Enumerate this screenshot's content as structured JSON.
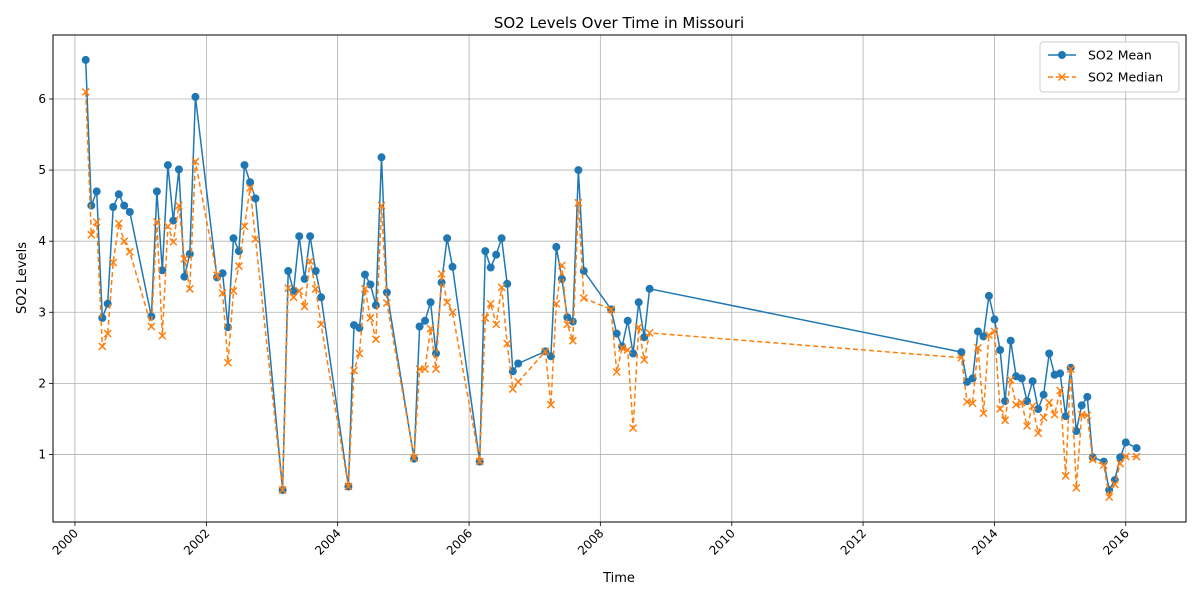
{
  "chart_data": {
    "type": "line",
    "title": "SO2 Levels Over Time in Missouri",
    "xlabel": "Time",
    "ylabel": "SO2 Levels",
    "x_is_date": true,
    "xlim": [
      "1999-09-01",
      "2016-12-01"
    ],
    "ylim": [
      0.05,
      6.9
    ],
    "x_ticks": [
      "2000",
      "2002",
      "2004",
      "2006",
      "2008",
      "2010",
      "2012",
      "2014",
      "2016"
    ],
    "y_ticks": [
      1,
      2,
      3,
      4,
      5,
      6
    ],
    "grid": true,
    "legend_position": "top-right",
    "colors": {
      "mean": "#1f77b4",
      "median": "#ff7f0e"
    },
    "series": [
      {
        "name": "SO2 Mean",
        "style": "solid",
        "marker": "circle",
        "points": [
          [
            "2000-03-01",
            6.55
          ],
          [
            "2000-04-01",
            4.5
          ],
          [
            "2000-05-01",
            4.7
          ],
          [
            "2000-06-01",
            2.92
          ],
          [
            "2000-07-01",
            3.12
          ],
          [
            "2000-08-01",
            4.48
          ],
          [
            "2000-09-01",
            4.66
          ],
          [
            "2000-10-01",
            4.5
          ],
          [
            "2000-11-01",
            4.41
          ],
          [
            "2001-03-01",
            2.94
          ],
          [
            "2001-04-01",
            4.7
          ],
          [
            "2001-05-01",
            3.59
          ],
          [
            "2001-06-01",
            5.07
          ],
          [
            "2001-07-01",
            4.29
          ],
          [
            "2001-08-01",
            5.01
          ],
          [
            "2001-09-01",
            3.5
          ],
          [
            "2001-10-01",
            3.82
          ],
          [
            "2001-11-01",
            6.03
          ],
          [
            "2002-03-01",
            3.49
          ],
          [
            "2002-04-01",
            3.55
          ],
          [
            "2002-05-01",
            2.79
          ],
          [
            "2002-06-01",
            4.04
          ],
          [
            "2002-07-01",
            3.86
          ],
          [
            "2002-08-01",
            5.07
          ],
          [
            "2002-09-01",
            4.83
          ],
          [
            "2002-10-01",
            4.6
          ],
          [
            "2003-03-01",
            0.5
          ],
          [
            "2003-04-01",
            3.58
          ],
          [
            "2003-05-01",
            3.3
          ],
          [
            "2003-06-01",
            4.07
          ],
          [
            "2003-07-01",
            3.47
          ],
          [
            "2003-08-01",
            4.07
          ],
          [
            "2003-09-01",
            3.58
          ],
          [
            "2003-10-01",
            3.21
          ],
          [
            "2004-03-01",
            0.55
          ],
          [
            "2004-04-01",
            2.82
          ],
          [
            "2004-05-01",
            2.78
          ],
          [
            "2004-06-01",
            3.53
          ],
          [
            "2004-07-01",
            3.39
          ],
          [
            "2004-08-01",
            3.1
          ],
          [
            "2004-09-01",
            5.18
          ],
          [
            "2004-10-01",
            3.28
          ],
          [
            "2005-03-01",
            0.94
          ],
          [
            "2005-04-01",
            2.8
          ],
          [
            "2005-05-01",
            2.88
          ],
          [
            "2005-06-01",
            3.14
          ],
          [
            "2005-07-01",
            2.42
          ],
          [
            "2005-08-01",
            3.42
          ],
          [
            "2005-09-01",
            4.04
          ],
          [
            "2005-10-01",
            3.64
          ],
          [
            "2006-03-01",
            0.9
          ],
          [
            "2006-04-01",
            3.86
          ],
          [
            "2006-05-01",
            3.63
          ],
          [
            "2006-06-01",
            3.81
          ],
          [
            "2006-07-01",
            4.04
          ],
          [
            "2006-08-01",
            3.4
          ],
          [
            "2006-09-01",
            2.17
          ],
          [
            "2006-10-01",
            2.28
          ],
          [
            "2007-03-01",
            2.45
          ],
          [
            "2007-04-01",
            2.38
          ],
          [
            "2007-05-01",
            3.92
          ],
          [
            "2007-06-01",
            3.47
          ],
          [
            "2007-07-01",
            2.93
          ],
          [
            "2007-08-01",
            2.87
          ],
          [
            "2007-09-01",
            5.0
          ],
          [
            "2007-10-01",
            3.58
          ],
          [
            "2008-03-01",
            3.04
          ],
          [
            "2008-04-01",
            2.7
          ],
          [
            "2008-05-01",
            2.52
          ],
          [
            "2008-06-01",
            2.88
          ],
          [
            "2008-07-01",
            2.42
          ],
          [
            "2008-08-01",
            3.14
          ],
          [
            "2008-09-01",
            2.65
          ],
          [
            "2008-10-01",
            3.33
          ],
          [
            "2013-07-01",
            2.44
          ],
          [
            "2013-08-01",
            2.02
          ],
          [
            "2013-09-01",
            2.07
          ],
          [
            "2013-10-01",
            2.73
          ],
          [
            "2013-11-01",
            2.66
          ],
          [
            "2013-12-01",
            3.23
          ],
          [
            "2014-01-01",
            2.9
          ],
          [
            "2014-02-01",
            2.47
          ],
          [
            "2014-03-01",
            1.75
          ],
          [
            "2014-04-01",
            2.6
          ],
          [
            "2014-05-01",
            2.1
          ],
          [
            "2014-06-01",
            2.07
          ],
          [
            "2014-07-01",
            1.75
          ],
          [
            "2014-08-01",
            2.03
          ],
          [
            "2014-09-01",
            1.64
          ],
          [
            "2014-10-01",
            1.84
          ],
          [
            "2014-11-01",
            2.42
          ],
          [
            "2014-12-01",
            2.12
          ],
          [
            "2015-01-01",
            2.14
          ],
          [
            "2015-02-01",
            1.54
          ],
          [
            "2015-03-01",
            2.22
          ],
          [
            "2015-04-01",
            1.33
          ],
          [
            "2015-05-01",
            1.69
          ],
          [
            "2015-06-01",
            1.81
          ],
          [
            "2015-07-01",
            0.96
          ],
          [
            "2015-09-01",
            0.9
          ],
          [
            "2015-10-01",
            0.5
          ],
          [
            "2015-11-01",
            0.64
          ],
          [
            "2015-12-01",
            0.96
          ],
          [
            "2016-01-01",
            1.17
          ],
          [
            "2016-03-01",
            1.09
          ]
        ]
      },
      {
        "name": "SO2 Median",
        "style": "dashed",
        "marker": "x",
        "points": [
          [
            "2000-03-01",
            6.1
          ],
          [
            "2000-04-01",
            4.09
          ],
          [
            "2000-05-01",
            4.27
          ],
          [
            "2000-06-01",
            2.52
          ],
          [
            "2000-07-01",
            2.7
          ],
          [
            "2000-08-01",
            3.7
          ],
          [
            "2000-09-01",
            4.25
          ],
          [
            "2000-10-01",
            4.0
          ],
          [
            "2000-11-01",
            3.85
          ],
          [
            "2001-03-01",
            2.8
          ],
          [
            "2001-04-01",
            4.27
          ],
          [
            "2001-05-01",
            2.67
          ],
          [
            "2001-06-01",
            4.21
          ],
          [
            "2001-07-01",
            3.99
          ],
          [
            "2001-08-01",
            4.5
          ],
          [
            "2001-09-01",
            3.75
          ],
          [
            "2001-10-01",
            3.33
          ],
          [
            "2001-11-01",
            5.12
          ],
          [
            "2002-03-01",
            3.52
          ],
          [
            "2002-04-01",
            3.27
          ],
          [
            "2002-05-01",
            2.29
          ],
          [
            "2002-06-01",
            3.3
          ],
          [
            "2002-07-01",
            3.65
          ],
          [
            "2002-08-01",
            4.21
          ],
          [
            "2002-09-01",
            4.75
          ],
          [
            "2002-10-01",
            4.03
          ],
          [
            "2003-03-01",
            0.5
          ],
          [
            "2003-04-01",
            3.34
          ],
          [
            "2003-05-01",
            3.21
          ],
          [
            "2003-06-01",
            3.3
          ],
          [
            "2003-07-01",
            3.08
          ],
          [
            "2003-08-01",
            3.72
          ],
          [
            "2003-09-01",
            3.33
          ],
          [
            "2003-10-01",
            2.83
          ],
          [
            "2004-03-01",
            0.55
          ],
          [
            "2004-04-01",
            2.18
          ],
          [
            "2004-05-01",
            2.42
          ],
          [
            "2004-06-01",
            3.33
          ],
          [
            "2004-07-01",
            2.92
          ],
          [
            "2004-08-01",
            2.62
          ],
          [
            "2004-09-01",
            4.5
          ],
          [
            "2004-10-01",
            3.13
          ],
          [
            "2005-03-01",
            0.95
          ],
          [
            "2005-04-01",
            2.2
          ],
          [
            "2005-05-01",
            2.2
          ],
          [
            "2005-06-01",
            2.77
          ],
          [
            "2005-07-01",
            2.2
          ],
          [
            "2005-08-01",
            3.54
          ],
          [
            "2005-09-01",
            3.14
          ],
          [
            "2005-10-01",
            3.0
          ],
          [
            "2006-03-01",
            0.9
          ],
          [
            "2006-04-01",
            2.92
          ],
          [
            "2006-05-01",
            3.12
          ],
          [
            "2006-06-01",
            2.83
          ],
          [
            "2006-07-01",
            3.35
          ],
          [
            "2006-08-01",
            2.56
          ],
          [
            "2006-09-01",
            1.92
          ],
          [
            "2006-10-01",
            2.02
          ],
          [
            "2007-03-01",
            2.45
          ],
          [
            "2007-04-01",
            1.7
          ],
          [
            "2007-05-01",
            3.12
          ],
          [
            "2007-06-01",
            3.66
          ],
          [
            "2007-07-01",
            2.83
          ],
          [
            "2007-08-01",
            2.6
          ],
          [
            "2007-09-01",
            4.54
          ],
          [
            "2007-10-01",
            3.2
          ],
          [
            "2008-03-01",
            3.04
          ],
          [
            "2008-04-01",
            2.16
          ],
          [
            "2008-05-01",
            2.5
          ],
          [
            "2008-06-01",
            2.47
          ],
          [
            "2008-07-01",
            1.37
          ],
          [
            "2008-08-01",
            2.79
          ],
          [
            "2008-09-01",
            2.33
          ],
          [
            "2008-10-01",
            2.71
          ],
          [
            "2013-07-01",
            2.36
          ],
          [
            "2013-08-01",
            1.74
          ],
          [
            "2013-09-01",
            1.72
          ],
          [
            "2013-10-01",
            2.5
          ],
          [
            "2013-11-01",
            1.58
          ],
          [
            "2013-12-01",
            2.68
          ],
          [
            "2014-01-01",
            2.73
          ],
          [
            "2014-02-01",
            1.64
          ],
          [
            "2014-03-01",
            1.48
          ],
          [
            "2014-04-01",
            2.05
          ],
          [
            "2014-05-01",
            1.7
          ],
          [
            "2014-06-01",
            1.73
          ],
          [
            "2014-07-01",
            1.4
          ],
          [
            "2014-08-01",
            1.68
          ],
          [
            "2014-09-01",
            1.3
          ],
          [
            "2014-10-01",
            1.52
          ],
          [
            "2014-11-01",
            1.73
          ],
          [
            "2014-12-01",
            1.56
          ],
          [
            "2015-01-01",
            1.9
          ],
          [
            "2015-02-01",
            0.7
          ],
          [
            "2015-03-01",
            2.2
          ],
          [
            "2015-04-01",
            0.53
          ],
          [
            "2015-05-01",
            1.56
          ],
          [
            "2015-06-01",
            1.55
          ],
          [
            "2015-07-01",
            0.93
          ],
          [
            "2015-09-01",
            0.85
          ],
          [
            "2015-10-01",
            0.4
          ],
          [
            "2015-11-01",
            0.58
          ],
          [
            "2015-12-01",
            0.87
          ],
          [
            "2016-01-01",
            0.97
          ],
          [
            "2016-03-01",
            0.97
          ]
        ]
      }
    ]
  }
}
